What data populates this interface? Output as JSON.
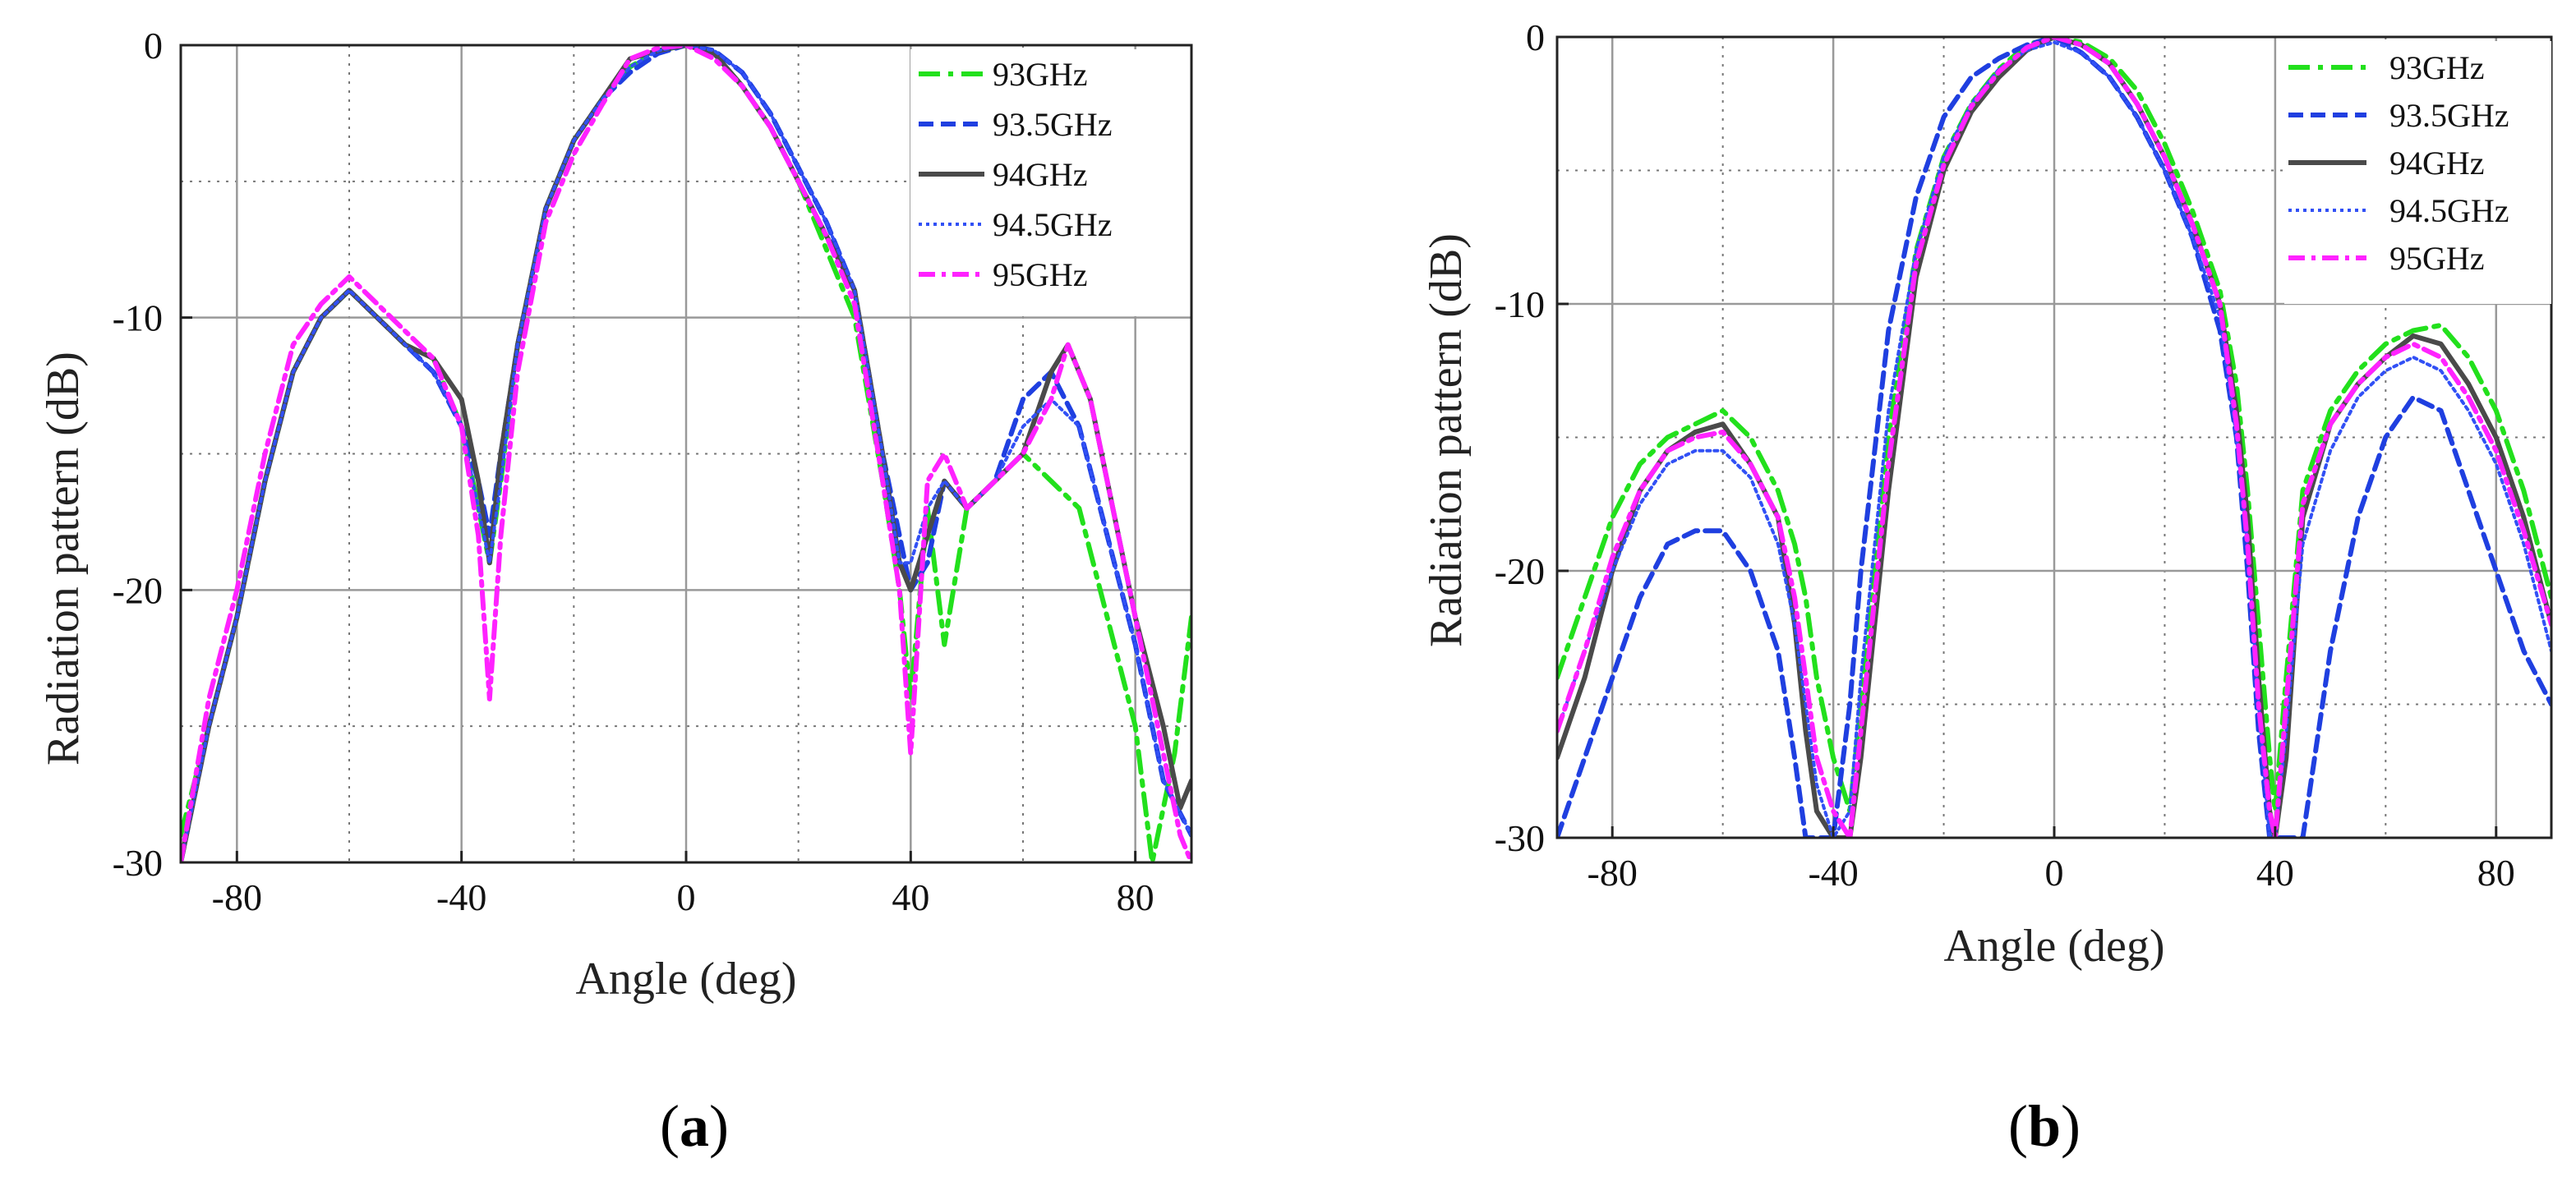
{
  "series_meta": [
    {
      "name": "93GHz",
      "color": "#22e01c",
      "dash": "26 10 6 10",
      "width": 6
    },
    {
      "name": "93.5GHz",
      "color": "#1f3fe0",
      "dash": "18 9",
      "width": 6
    },
    {
      "name": "94GHz",
      "color": "#4a4a4a",
      "dash": "",
      "width": 6
    },
    {
      "name": "94.5GHz",
      "color": "#3150f5",
      "dash": "4 5",
      "width": 4
    },
    {
      "name": "95GHz",
      "color": "#ff22ff",
      "dash": "20 8 5 8",
      "width": 6
    }
  ],
  "chart_data": [
    {
      "type": "line",
      "caption": "a",
      "xlabel": "Angle (deg)",
      "ylabel": "Radiation pattern (dB)",
      "xlim": [
        -90,
        90
      ],
      "ylim": [
        -30,
        0
      ],
      "xticks": [
        -80,
        -40,
        0,
        40,
        80
      ],
      "yticks": [
        0,
        -10,
        -20,
        -30
      ],
      "xtick_labels": [
        "-80",
        "-40",
        "0",
        "40",
        "80"
      ],
      "ytick_labels": [
        "0",
        "-10",
        "-20",
        "-30"
      ],
      "grid": "major solid, minor dotted",
      "legend": "top-right",
      "series": [
        {
          "name": "93GHz",
          "x": [
            -90,
            -85,
            -80,
            -75,
            -70,
            -65,
            -60,
            -55,
            -50,
            -45,
            -40,
            -37,
            -35,
            -33,
            -30,
            -25,
            -20,
            -15,
            -10,
            -5,
            0,
            5,
            10,
            15,
            20,
            25,
            30,
            35,
            38,
            40,
            43,
            46,
            50,
            55,
            60,
            65,
            70,
            75,
            80,
            83,
            87,
            90
          ],
          "y": [
            -29,
            -25,
            -21,
            -16,
            -12,
            -10,
            -9,
            -10,
            -11,
            -11.5,
            -14,
            -17,
            -19,
            -16,
            -11,
            -6,
            -3.5,
            -2,
            -0.8,
            -0.2,
            0,
            -0.3,
            -1.5,
            -3,
            -5,
            -7.5,
            -10,
            -16,
            -20,
            -24,
            -17,
            -22,
            -17,
            -16,
            -15,
            -16,
            -17,
            -21,
            -25,
            -30,
            -26,
            -21
          ]
        },
        {
          "name": "93.5GHz",
          "x": [
            -90,
            -85,
            -80,
            -75,
            -70,
            -65,
            -60,
            -55,
            -50,
            -45,
            -40,
            -37,
            -35,
            -33,
            -30,
            -25,
            -20,
            -15,
            -10,
            -5,
            0,
            5,
            10,
            15,
            20,
            25,
            30,
            35,
            38,
            40,
            43,
            46,
            50,
            55,
            60,
            65,
            70,
            75,
            80,
            85,
            90
          ],
          "y": [
            -30,
            -25,
            -21,
            -16,
            -12,
            -10,
            -9,
            -10,
            -11,
            -12,
            -14,
            -16,
            -18,
            -15,
            -11,
            -6,
            -3.5,
            -2,
            -1,
            -0.3,
            0,
            -0.2,
            -1,
            -2.5,
            -4.5,
            -6.5,
            -9,
            -15,
            -18,
            -20,
            -19,
            -16,
            -17,
            -16,
            -13,
            -12,
            -14,
            -18,
            -22,
            -27,
            -29
          ]
        },
        {
          "name": "94GHz",
          "x": [
            -90,
            -85,
            -80,
            -75,
            -70,
            -65,
            -60,
            -55,
            -50,
            -45,
            -40,
            -37,
            -35,
            -33,
            -30,
            -25,
            -20,
            -15,
            -10,
            -5,
            0,
            5,
            10,
            15,
            20,
            25,
            30,
            35,
            38,
            40,
            43,
            46,
            50,
            55,
            60,
            65,
            68,
            72,
            75,
            80,
            85,
            88,
            90
          ],
          "y": [
            -30,
            -25,
            -21,
            -16,
            -12,
            -10,
            -9,
            -10,
            -11,
            -11.5,
            -13,
            -16,
            -19,
            -15,
            -11,
            -6,
            -3.5,
            -2,
            -0.5,
            -0.2,
            0,
            -0.3,
            -1.5,
            -3,
            -5,
            -7,
            -9,
            -15,
            -19,
            -20,
            -18,
            -16,
            -17,
            -16,
            -15,
            -12,
            -11,
            -13,
            -16,
            -21,
            -25,
            -28,
            -27
          ]
        },
        {
          "name": "94.5GHz",
          "x": [
            -90,
            -85,
            -80,
            -75,
            -70,
            -65,
            -60,
            -55,
            -50,
            -45,
            -40,
            -37,
            -35,
            -33,
            -30,
            -25,
            -20,
            -15,
            -10,
            -5,
            0,
            5,
            10,
            15,
            20,
            25,
            30,
            35,
            38,
            40,
            43,
            46,
            50,
            55,
            60,
            65,
            70,
            75,
            80,
            85,
            90
          ],
          "y": [
            -30,
            -25,
            -21,
            -16,
            -12,
            -10,
            -9,
            -10,
            -11,
            -12,
            -14,
            -17,
            -19,
            -16,
            -11,
            -6,
            -3.5,
            -2,
            -0.8,
            -0.2,
            0,
            -0.2,
            -1,
            -2.5,
            -4.5,
            -6.5,
            -9,
            -15,
            -19,
            -19,
            -17,
            -16,
            -17,
            -16,
            -14,
            -13,
            -14,
            -18,
            -22,
            -27,
            -29
          ]
        },
        {
          "name": "95GHz",
          "x": [
            -90,
            -85,
            -80,
            -75,
            -70,
            -65,
            -60,
            -55,
            -50,
            -45,
            -40,
            -37,
            -35,
            -33,
            -30,
            -25,
            -20,
            -15,
            -10,
            -5,
            0,
            5,
            10,
            15,
            20,
            25,
            30,
            35,
            38,
            40,
            43,
            46,
            50,
            55,
            60,
            65,
            68,
            72,
            75,
            80,
            85,
            88,
            90
          ],
          "y": [
            -30,
            -24,
            -20,
            -15,
            -11,
            -9.5,
            -8.5,
            -9.5,
            -10.5,
            -11.5,
            -14,
            -18,
            -24,
            -18,
            -12,
            -6.5,
            -4,
            -2.2,
            -0.5,
            -0.1,
            0,
            -0.5,
            -1.5,
            -3,
            -5,
            -7,
            -9.5,
            -16,
            -20,
            -26,
            -16,
            -15,
            -17,
            -16,
            -15,
            -13,
            -11,
            -13,
            -16,
            -21,
            -26,
            -29,
            -30
          ]
        }
      ]
    },
    {
      "type": "line",
      "caption": "b",
      "xlabel": "Angle (deg)",
      "ylabel": "Radiation pattern (dB)",
      "xlim": [
        -90,
        90
      ],
      "ylim": [
        -30,
        0
      ],
      "xticks": [
        -80,
        -40,
        0,
        40,
        80
      ],
      "yticks": [
        0,
        -10,
        -20,
        -30
      ],
      "xtick_labels": [
        "-80",
        "-40",
        "0",
        "40",
        "80"
      ],
      "ytick_labels": [
        "0",
        "-10",
        "-20",
        "-30"
      ],
      "grid": "major solid, minor dotted",
      "legend": "top-right",
      "series": [
        {
          "name": "93GHz",
          "x": [
            -90,
            -85,
            -80,
            -75,
            -70,
            -65,
            -60,
            -55,
            -50,
            -47,
            -45,
            -43,
            -40,
            -37,
            -35,
            -30,
            -25,
            -20,
            -15,
            -10,
            -5,
            0,
            5,
            10,
            15,
            20,
            25,
            30,
            33,
            35,
            37,
            39,
            40,
            42,
            45,
            50,
            55,
            60,
            65,
            70,
            75,
            80,
            85,
            90
          ],
          "y": [
            -24,
            -21,
            -18,
            -16,
            -15,
            -14.5,
            -14,
            -15,
            -17,
            -19,
            -21,
            -24,
            -27,
            -29,
            -25,
            -15,
            -8,
            -4.5,
            -2.5,
            -1.2,
            -0.3,
            0,
            -0.2,
            -0.8,
            -2,
            -4,
            -6.5,
            -9.5,
            -13,
            -17,
            -22,
            -27,
            -29,
            -24,
            -17,
            -14,
            -12.5,
            -11.5,
            -11,
            -10.8,
            -12,
            -14,
            -17,
            -21
          ]
        },
        {
          "name": "93.5GHz",
          "x": [
            -90,
            -85,
            -80,
            -75,
            -70,
            -65,
            -60,
            -55,
            -50,
            -47,
            -45,
            -43,
            -40,
            -37,
            -35,
            -30,
            -25,
            -20,
            -15,
            -10,
            -5,
            0,
            5,
            10,
            15,
            20,
            25,
            30,
            33,
            35,
            37,
            39,
            40,
            42,
            45,
            50,
            55,
            60,
            65,
            70,
            75,
            80,
            85,
            90
          ],
          "y": [
            -30,
            -27,
            -24,
            -21,
            -19,
            -18.5,
            -18.5,
            -20,
            -23,
            -27,
            -30,
            -30,
            -30,
            -25,
            -20,
            -11,
            -6,
            -3,
            -1.5,
            -0.8,
            -0.3,
            0,
            -0.6,
            -1.5,
            -3,
            -5,
            -7.5,
            -11,
            -15,
            -20,
            -26,
            -30,
            -30,
            -30,
            -30,
            -23,
            -18,
            -15,
            -13.5,
            -14,
            -17,
            -20,
            -23,
            -25
          ]
        },
        {
          "name": "94GHz",
          "x": [
            -90,
            -85,
            -80,
            -75,
            -70,
            -65,
            -60,
            -55,
            -50,
            -47,
            -45,
            -43,
            -40,
            -37,
            -35,
            -30,
            -25,
            -20,
            -15,
            -10,
            -5,
            0,
            5,
            10,
            15,
            20,
            25,
            30,
            33,
            35,
            37,
            39,
            40,
            42,
            45,
            50,
            55,
            60,
            65,
            70,
            75,
            80,
            85,
            90
          ],
          "y": [
            -27,
            -24,
            -20,
            -17,
            -15.5,
            -14.8,
            -14.5,
            -16,
            -18,
            -22,
            -26,
            -29,
            -30,
            -30,
            -27,
            -17,
            -9,
            -5,
            -2.8,
            -1.5,
            -0.5,
            0,
            -0.3,
            -1,
            -2.5,
            -4.5,
            -7,
            -10,
            -14,
            -18,
            -24,
            -29,
            -30,
            -27,
            -18,
            -14.5,
            -13,
            -12,
            -11.2,
            -11.5,
            -13,
            -15,
            -18,
            -22
          ]
        },
        {
          "name": "94.5GHz",
          "x": [
            -90,
            -85,
            -80,
            -75,
            -70,
            -65,
            -60,
            -55,
            -50,
            -47,
            -45,
            -43,
            -40,
            -37,
            -35,
            -30,
            -25,
            -20,
            -15,
            -10,
            -5,
            0,
            5,
            10,
            15,
            20,
            25,
            30,
            33,
            35,
            37,
            39,
            40,
            42,
            45,
            50,
            55,
            60,
            65,
            70,
            75,
            80,
            85,
            90
          ],
          "y": [
            -26,
            -23,
            -20,
            -17.5,
            -16,
            -15.5,
            -15.5,
            -16.5,
            -19,
            -22,
            -25,
            -28,
            -30,
            -29,
            -24,
            -14,
            -8,
            -4.5,
            -2.5,
            -1.2,
            -0.5,
            -0.2,
            -0.6,
            -1.5,
            -3,
            -5,
            -7.5,
            -10.5,
            -15,
            -19,
            -25,
            -30,
            -30,
            -26,
            -19,
            -15.5,
            -13.5,
            -12.5,
            -12,
            -12.5,
            -14,
            -16,
            -19,
            -23
          ]
        },
        {
          "name": "95GHz",
          "x": [
            -90,
            -85,
            -80,
            -75,
            -70,
            -65,
            -60,
            -55,
            -50,
            -47,
            -45,
            -43,
            -40,
            -37,
            -35,
            -30,
            -25,
            -20,
            -15,
            -10,
            -5,
            0,
            5,
            10,
            15,
            20,
            25,
            30,
            33,
            35,
            37,
            39,
            40,
            42,
            45,
            50,
            55,
            60,
            65,
            70,
            75,
            80,
            85,
            90
          ],
          "y": [
            -26,
            -23,
            -19.5,
            -17,
            -15.5,
            -15,
            -14.8,
            -16,
            -18,
            -21,
            -24,
            -27,
            -29,
            -30,
            -26,
            -16,
            -8.5,
            -4.8,
            -2.6,
            -1.3,
            -0.4,
            0,
            -0.3,
            -1,
            -2.5,
            -4.5,
            -7,
            -10,
            -14.5,
            -19,
            -25,
            -29,
            -30,
            -25,
            -17.5,
            -14.5,
            -13,
            -12,
            -11.5,
            -12,
            -13.5,
            -15.5,
            -18.5,
            -22
          ]
        }
      ]
    }
  ]
}
